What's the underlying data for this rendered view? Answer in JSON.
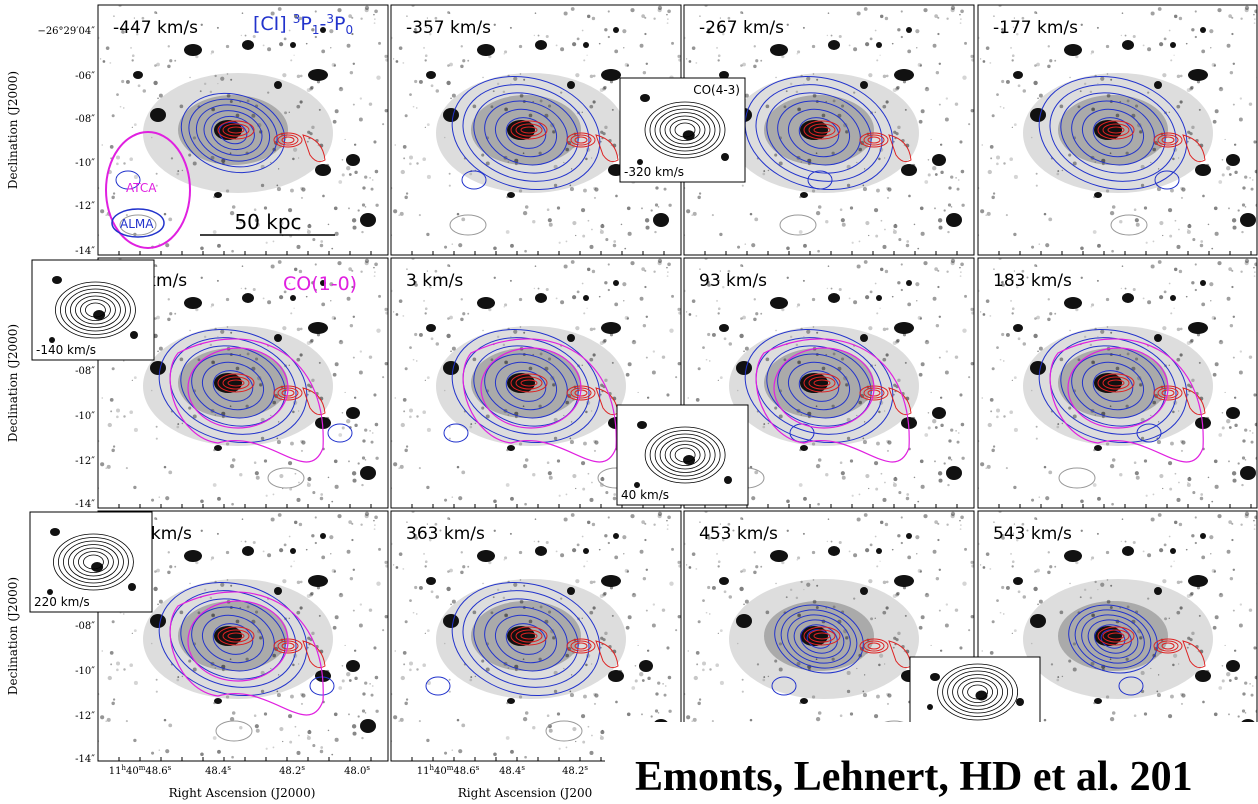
{
  "panels": [
    {
      "velocity": "-447 km/s"
    },
    {
      "velocity": "-357 km/s"
    },
    {
      "velocity": "-267 km/s"
    },
    {
      "velocity": "-177 km/s"
    },
    {
      "velocity": "-87 km/s"
    },
    {
      "velocity": "3 km/s"
    },
    {
      "velocity": "93 km/s"
    },
    {
      "velocity": "183 km/s"
    },
    {
      "velocity": "273 km/s"
    },
    {
      "velocity": "363 km/s"
    },
    {
      "velocity": "453 km/s"
    },
    {
      "velocity": "543 km/s"
    }
  ],
  "ci_label": {
    "name": "[CI] ",
    "sup1": "3",
    "p1": "P",
    "sub1": "1",
    "dash": "-",
    "sup2": "3",
    "p2": "P",
    "sub2": "0"
  },
  "co10_label": "CO(1-0)",
  "beams": {
    "atca": "ATCA",
    "alma": "ALMA"
  },
  "scale_bar": "50 kpc",
  "insets": [
    {
      "label": "CO(4-3)",
      "velocity": "-320 km/s"
    },
    {
      "velocity": "-140 km/s"
    },
    {
      "velocity": "40 km/s"
    },
    {
      "velocity": "220 km/s"
    }
  ],
  "y_axis": {
    "title": "Declination (J2000)",
    "rows": [
      [
        "−26°29′04″",
        "-06″",
        "-08″",
        "-10″",
        "-12″",
        "-14″"
      ],
      [
        "-08″",
        "-10″",
        "-12″",
        "-14″"
      ],
      [
        "-08″",
        "-10″",
        "-12″",
        "-14″"
      ]
    ]
  },
  "x_axis": {
    "titles": [
      "Right Ascension (J2000)",
      "Right Ascension (J200"
    ],
    "ticks": [
      [
        [
          "11",
          "h",
          "40",
          "m",
          "48.6",
          "s"
        ],
        [
          "48.4",
          "s"
        ],
        [
          "48.2",
          "s"
        ],
        [
          "48.0",
          "s"
        ]
      ],
      [
        [
          "11",
          "h",
          "40",
          "m",
          "48.6",
          "s"
        ],
        [
          "48.4",
          "s"
        ],
        [
          "48.2",
          "s"
        ]
      ]
    ]
  },
  "credit": "Emonts, Lehnert, HD et al. 201"
}
